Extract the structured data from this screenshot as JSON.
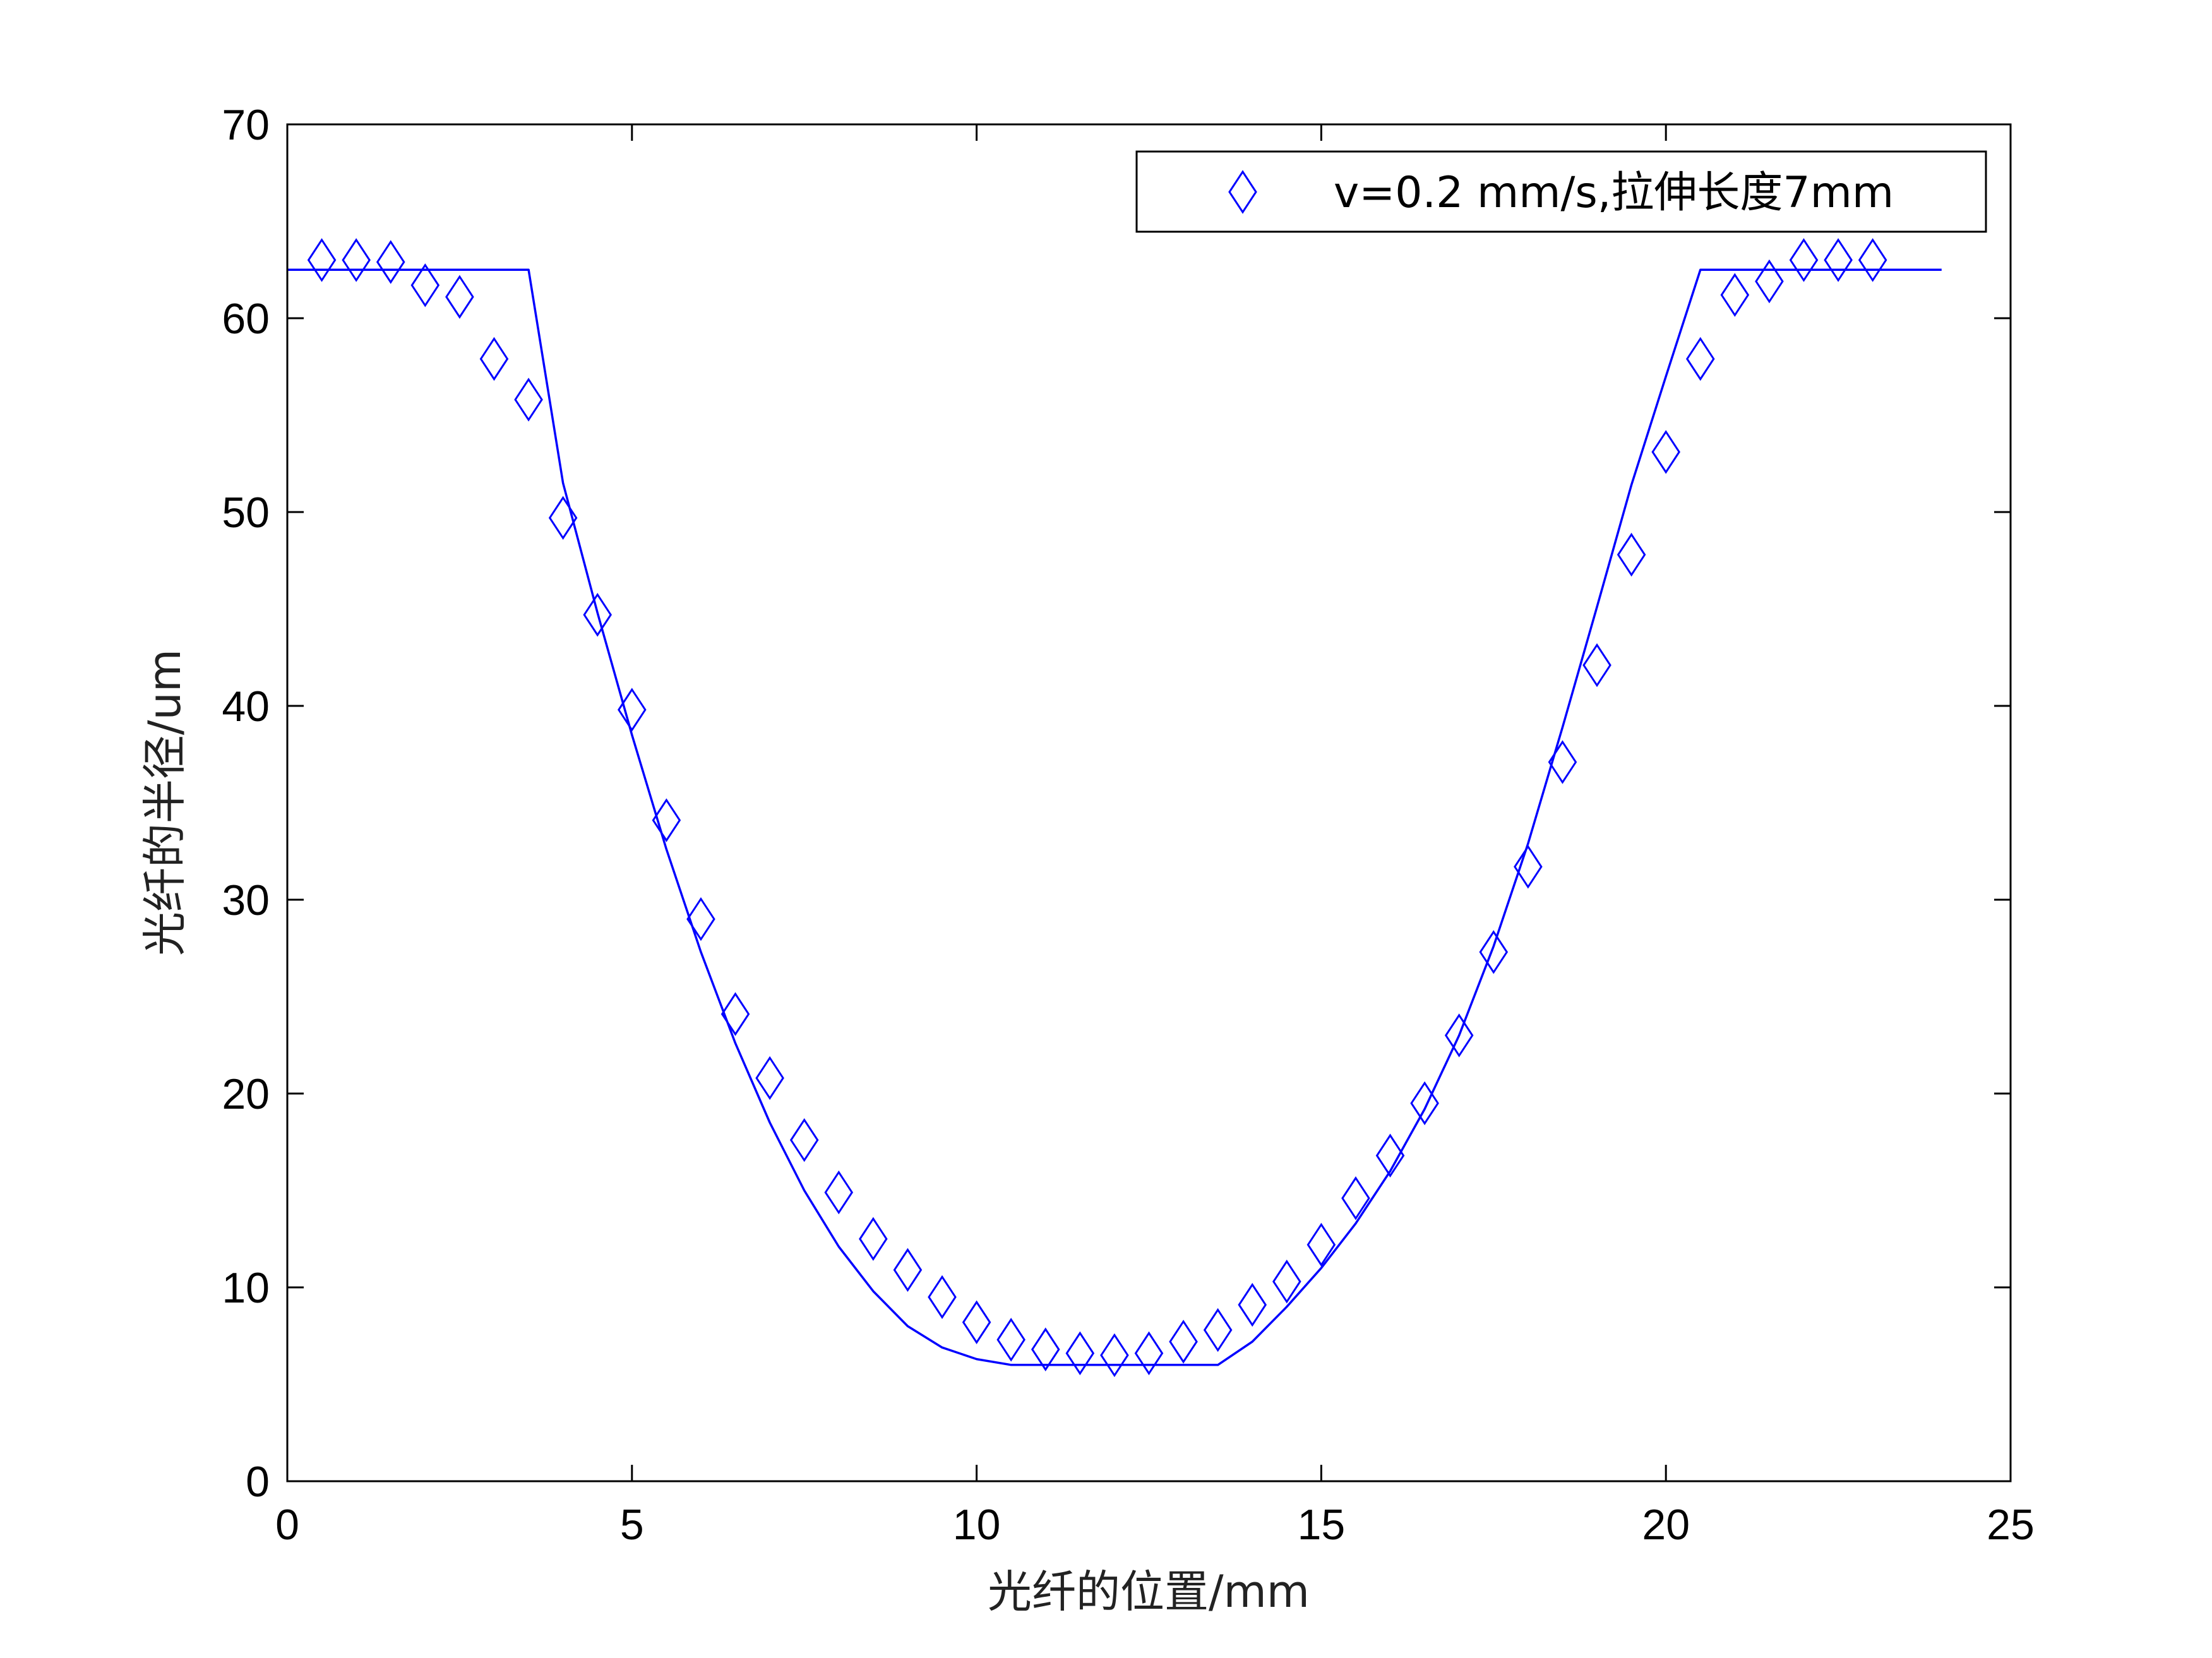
{
  "chart_data": {
    "type": "scatter",
    "xlabel": "光纤的位置/mm",
    "ylabel": "光纤的半径/um",
    "xlim": [
      0,
      25
    ],
    "ylim": [
      0,
      70
    ],
    "xticks": [
      0,
      5,
      10,
      15,
      20,
      25
    ],
    "yticks": [
      0,
      10,
      20,
      30,
      40,
      50,
      60,
      70
    ],
    "grid": false,
    "legend_position": "top-right",
    "series": [
      {
        "name": "v=0.2 mm/s,拉伸长度7mm",
        "kind": "scatter",
        "marker": "diamond",
        "color": "#0000ff",
        "x": [
          0.5,
          1,
          1.5,
          2,
          2.5,
          3,
          3.5,
          4,
          4.5,
          5,
          5.5,
          6,
          6.5,
          7,
          7.5,
          8,
          8.5,
          9,
          9.5,
          10,
          10.5,
          11,
          11.5,
          12,
          12.5,
          13,
          13.5,
          14,
          14.5,
          15,
          15.5,
          16,
          16.5,
          17,
          17.5,
          18,
          18.5,
          19,
          19.5,
          20,
          20.5,
          21,
          21.5,
          22,
          22.5,
          23
        ],
        "y": [
          63.0,
          63.0,
          62.9,
          61.7,
          61.1,
          57.9,
          55.8,
          49.7,
          44.7,
          39.8,
          34.1,
          29.0,
          24.1,
          20.8,
          17.6,
          14.9,
          12.5,
          10.9,
          9.5,
          8.2,
          7.3,
          6.8,
          6.6,
          6.5,
          6.6,
          7.2,
          7.8,
          9.1,
          10.3,
          12.2,
          14.6,
          16.8,
          19.5,
          23.0,
          27.3,
          31.7,
          37.1,
          42.1,
          47.8,
          53.1,
          57.9,
          61.2,
          61.9,
          63.0,
          63.0,
          63.0
        ]
      },
      {
        "kind": "line",
        "color": "#0000ff",
        "x": [
          0,
          3.5,
          4,
          4.5,
          5,
          5.5,
          6,
          6.5,
          7,
          7.5,
          8,
          8.5,
          9,
          9.5,
          10,
          10.5,
          13.5,
          14,
          14.5,
          15,
          15.5,
          16,
          16.5,
          17,
          17.5,
          18,
          18.5,
          19,
          19.5,
          20,
          20.5,
          24
        ],
        "y": [
          62.5,
          62.5,
          51.5,
          44.8,
          38.5,
          32.6,
          27.3,
          22.6,
          18.5,
          15.0,
          12.1,
          9.8,
          8.0,
          6.9,
          6.3,
          6.0,
          6.0,
          7.2,
          9.0,
          11.0,
          13.3,
          16.0,
          19.2,
          23.0,
          27.6,
          32.9,
          38.9,
          45.1,
          51.4,
          57.0,
          62.5,
          62.5
        ]
      }
    ]
  }
}
